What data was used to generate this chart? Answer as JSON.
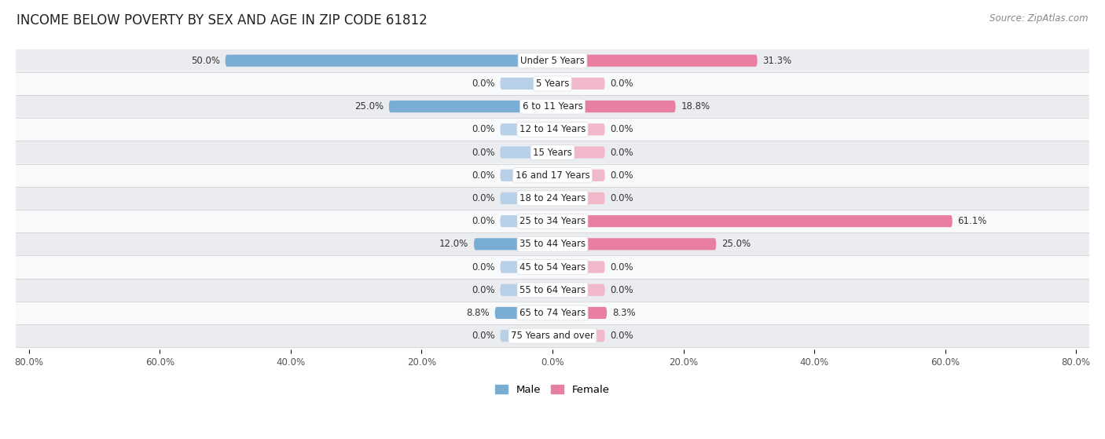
{
  "title": "INCOME BELOW POVERTY BY SEX AND AGE IN ZIP CODE 61812",
  "source": "Source: ZipAtlas.com",
  "categories": [
    "Under 5 Years",
    "5 Years",
    "6 to 11 Years",
    "12 to 14 Years",
    "15 Years",
    "16 and 17 Years",
    "18 to 24 Years",
    "25 to 34 Years",
    "35 to 44 Years",
    "45 to 54 Years",
    "55 to 64 Years",
    "65 to 74 Years",
    "75 Years and over"
  ],
  "male": [
    50.0,
    0.0,
    25.0,
    0.0,
    0.0,
    0.0,
    0.0,
    0.0,
    12.0,
    0.0,
    0.0,
    8.8,
    0.0
  ],
  "female": [
    31.3,
    0.0,
    18.8,
    0.0,
    0.0,
    0.0,
    0.0,
    61.1,
    25.0,
    0.0,
    0.0,
    8.3,
    0.0
  ],
  "male_color": "#7aadd4",
  "female_color": "#e87fa0",
  "male_stub_color": "#b8d0e8",
  "female_stub_color": "#f0b8c8",
  "male_label": "Male",
  "female_label": "Female",
  "axis_max": 80.0,
  "stub_size": 8.0,
  "row_bg_shaded": "#eaecf0",
  "row_bg_white": "#f8f9fa",
  "title_fontsize": 12,
  "source_fontsize": 8.5,
  "value_label_fontsize": 8.5,
  "category_fontsize": 8.5,
  "tick_fontsize": 8.5
}
